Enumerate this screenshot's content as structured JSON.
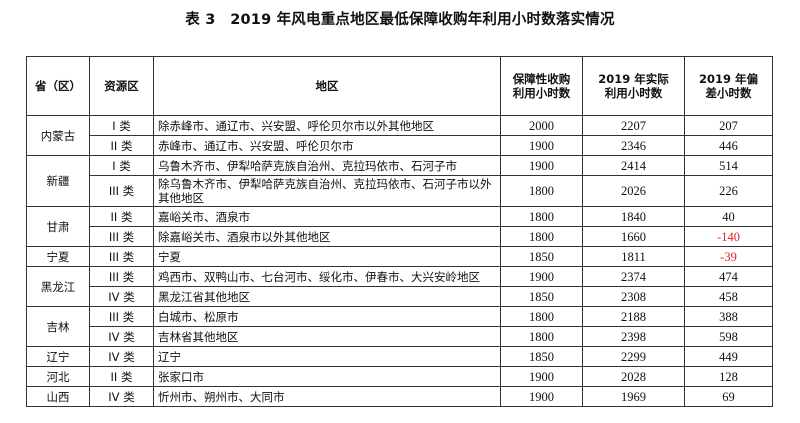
{
  "title": "表 3　2019 年风电重点地区最低保障收购年利用小时数落实情况",
  "headers": {
    "province": "省（区）",
    "resource_zone": "资源区",
    "area": "地区",
    "guaranteed_hours": "保障性收购利用小时数",
    "actual_hours": "2019 年实际利用小时数",
    "deviation_hours": "2019 年偏差小时数"
  },
  "negative_color": "#e8202a",
  "groups": [
    {
      "province": "内蒙古",
      "rows": [
        {
          "zone": "I 类",
          "area": "除赤峰市、通辽市、兴安盟、呼伦贝尔市以外其他地区",
          "guaranteed": "2000",
          "actual": "2207",
          "deviation": "207"
        },
        {
          "zone": "II 类",
          "area": "赤峰市、通辽市、兴安盟、呼伦贝尔市",
          "guaranteed": "1900",
          "actual": "2346",
          "deviation": "446"
        }
      ]
    },
    {
      "province": "新疆",
      "rows": [
        {
          "zone": "I 类",
          "area": "乌鲁木齐市、伊犁哈萨克族自治州、克拉玛依市、石河子市",
          "guaranteed": "1900",
          "actual": "2414",
          "deviation": "514"
        },
        {
          "zone": "III 类",
          "area": "除乌鲁木齐市、伊犁哈萨克族自治州、克拉玛依市、石河子市以外其他地区",
          "guaranteed": "1800",
          "actual": "2026",
          "deviation": "226"
        }
      ]
    },
    {
      "province": "甘肃",
      "rows": [
        {
          "zone": "II 类",
          "area": "嘉峪关市、酒泉市",
          "guaranteed": "1800",
          "actual": "1840",
          "deviation": "40"
        },
        {
          "zone": "III 类",
          "area": "除嘉峪关市、酒泉市以外其他地区",
          "guaranteed": "1800",
          "actual": "1660",
          "deviation": "-140"
        }
      ]
    },
    {
      "province": "宁夏",
      "rows": [
        {
          "zone": "III 类",
          "area": "宁夏",
          "guaranteed": "1850",
          "actual": "1811",
          "deviation": "-39"
        }
      ]
    },
    {
      "province": "黑龙江",
      "rows": [
        {
          "zone": "III 类",
          "area": "鸡西市、双鸭山市、七台河市、绥化市、伊春市、大兴安岭地区",
          "guaranteed": "1900",
          "actual": "2374",
          "deviation": "474"
        },
        {
          "zone": "IV 类",
          "area": "黑龙江省其他地区",
          "guaranteed": "1850",
          "actual": "2308",
          "deviation": "458"
        }
      ]
    },
    {
      "province": "吉林",
      "rows": [
        {
          "zone": "III 类",
          "area": "白城市、松原市",
          "guaranteed": "1800",
          "actual": "2188",
          "deviation": "388"
        },
        {
          "zone": "IV 类",
          "area": "吉林省其他地区",
          "guaranteed": "1800",
          "actual": "2398",
          "deviation": "598"
        }
      ]
    },
    {
      "province": "辽宁",
      "rows": [
        {
          "zone": "IV 类",
          "area": "辽宁",
          "guaranteed": "1850",
          "actual": "2299",
          "deviation": "449"
        }
      ]
    },
    {
      "province": "河北",
      "rows": [
        {
          "zone": "II 类",
          "area": "张家口市",
          "guaranteed": "1900",
          "actual": "2028",
          "deviation": "128"
        }
      ]
    },
    {
      "province": "山西",
      "rows": [
        {
          "zone": "IV 类",
          "area": "忻州市、朔州市、大同市",
          "guaranteed": "1900",
          "actual": "1969",
          "deviation": "69"
        }
      ]
    }
  ]
}
